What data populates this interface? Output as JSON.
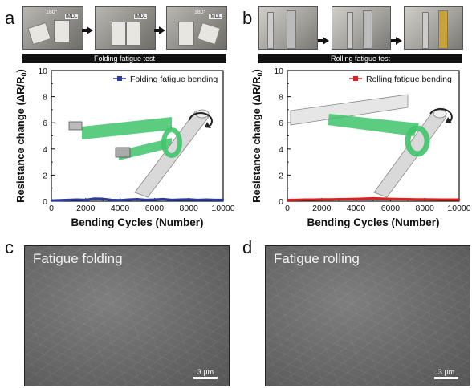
{
  "panels": {
    "a": "a",
    "b": "b",
    "c": "c",
    "d": "d"
  },
  "photos_a": {
    "label_1": "180°",
    "label_2": "IMDL",
    "label_3": "IMDL",
    "label_4": "180°",
    "label_5": "IMDL"
  },
  "bars": {
    "a": "Folding fatigue test",
    "b": "Rolling fatigue test"
  },
  "sem": {
    "c_title": "Fatigue folding",
    "d_title": "Fatigue rolling",
    "c_scale": "3 µm",
    "d_scale": "3 µm"
  },
  "colors": {
    "folding_series": "#2b3a9c",
    "rolling_series": "#e02020",
    "film": "#3fc46a"
  },
  "chart_data": [
    {
      "type": "line",
      "xlabel": "Bending Cycles (Number)",
      "ylabel_prefix": "Resistance change (ΔR/R",
      "ylabel_sub": "0",
      "ylabel_suffix": ")",
      "xlim": [
        0,
        10000
      ],
      "ylim": [
        0,
        10
      ],
      "xticks": [
        0,
        2000,
        4000,
        6000,
        8000,
        10000
      ],
      "xtick_labels": [
        "0",
        "2000",
        "4000",
        "6000",
        "8000",
        "10000"
      ],
      "yticks": [
        0,
        2,
        4,
        6,
        8,
        10
      ],
      "ytick_labels": [
        "0",
        "2",
        "4",
        "6",
        "8",
        "10"
      ],
      "legend_loc": "top-right",
      "series": [
        {
          "name": "Folding fatigue bending",
          "color": "#2b3a9c",
          "x": [
            0,
            500,
            1000,
            1500,
            2000,
            2500,
            3000,
            3500,
            4000,
            4500,
            5000,
            5500,
            6000,
            6500,
            7000,
            7500,
            8000,
            8500,
            9000,
            9500,
            10000
          ],
          "y": [
            0.05,
            0.08,
            0.1,
            0.12,
            0.1,
            0.2,
            0.18,
            0.1,
            0.08,
            0.12,
            0.15,
            0.1,
            0.12,
            0.16,
            0.1,
            0.12,
            0.14,
            0.1,
            0.12,
            0.1,
            0.1
          ]
        }
      ]
    },
    {
      "type": "line",
      "xlabel": "Bending Cycles (Number)",
      "ylabel_prefix": "Resistance change (ΔR/R",
      "ylabel_sub": "0",
      "ylabel_suffix": ")",
      "xlim": [
        0,
        10000
      ],
      "ylim": [
        0,
        10
      ],
      "xticks": [
        0,
        2000,
        4000,
        6000,
        8000,
        10000
      ],
      "xtick_labels": [
        "0",
        "2000",
        "4000",
        "6000",
        "8000",
        "10000"
      ],
      "yticks": [
        0,
        2,
        4,
        6,
        8,
        10
      ],
      "ytick_labels": [
        "0",
        "2",
        "4",
        "6",
        "8",
        "10"
      ],
      "legend_loc": "top-right",
      "series": [
        {
          "name": "Rolling fatigue bending",
          "color": "#e02020",
          "x": [
            0,
            500,
            1000,
            1500,
            2000,
            2500,
            3000,
            3500,
            4000,
            4500,
            5000,
            5500,
            6000,
            6500,
            7000,
            7500,
            8000,
            8500,
            9000,
            9500,
            10000
          ],
          "y": [
            0.1,
            0.1,
            0.12,
            0.12,
            0.14,
            0.14,
            0.15,
            0.16,
            0.18,
            0.2,
            0.22,
            0.2,
            0.18,
            0.16,
            0.15,
            0.14,
            0.14,
            0.13,
            0.12,
            0.12,
            0.12
          ]
        }
      ]
    }
  ]
}
